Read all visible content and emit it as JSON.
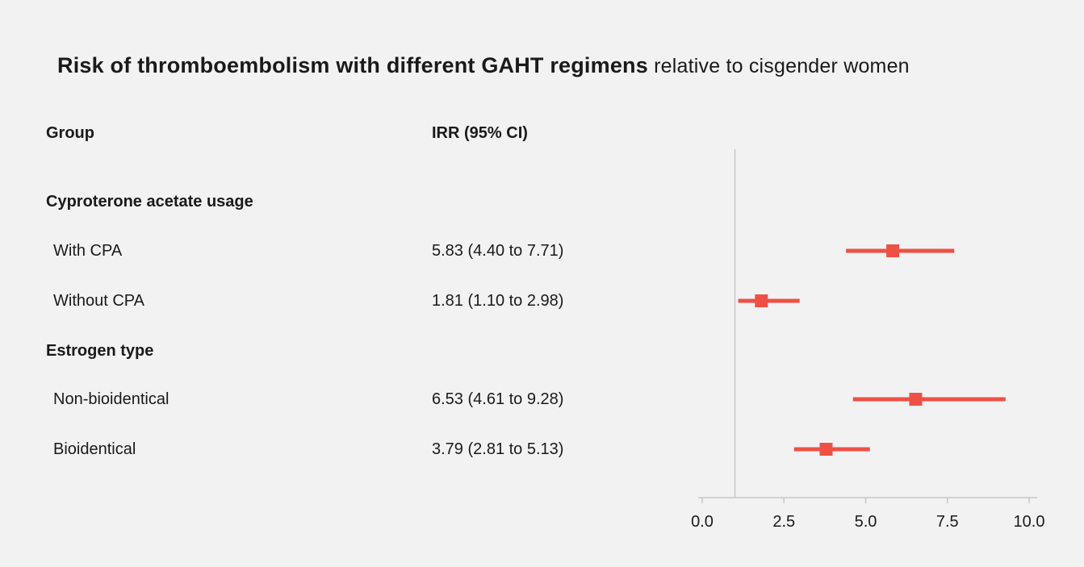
{
  "title": {
    "main": "Risk of thromboembolism with different GAHT regimens",
    "suffix": " relative to cisgender women"
  },
  "columns": {
    "group": "Group",
    "irr": "IRR (95% CI)"
  },
  "chart_data": {
    "type": "forest",
    "title": "Risk of thromboembolism with different GAHT regimens relative to cisgender women",
    "xlabel": "",
    "ylabel": "",
    "xlim": [
      0,
      10
    ],
    "reference_line": 1.0,
    "ticks": [
      0,
      2.5,
      5,
      7.5,
      10
    ],
    "tick_labels": [
      "0.0",
      "2.5",
      "5.0",
      "7.5",
      "10.0"
    ],
    "marker_color": "#ef5045",
    "axis_color": "#c6c6c6",
    "groups": [
      {
        "heading": "Cyproterone acetate usage",
        "rows": [
          {
            "label": "With CPA",
            "value_text": "5.83 (4.40 to 7.71)",
            "estimate": 5.83,
            "ci_low": 4.4,
            "ci_high": 7.71
          },
          {
            "label": "Without CPA",
            "value_text": "1.81 (1.10 to 2.98)",
            "estimate": 1.81,
            "ci_low": 1.1,
            "ci_high": 2.98
          }
        ]
      },
      {
        "heading": "Estrogen type",
        "rows": [
          {
            "label": "Non-bioidentical",
            "value_text": "6.53 (4.61 to 9.28)",
            "estimate": 6.53,
            "ci_low": 4.61,
            "ci_high": 9.28
          },
          {
            "label": "Bioidentical",
            "value_text": "3.79 (2.81 to 5.13)",
            "estimate": 3.79,
            "ci_low": 2.81,
            "ci_high": 5.13
          }
        ]
      }
    ]
  }
}
